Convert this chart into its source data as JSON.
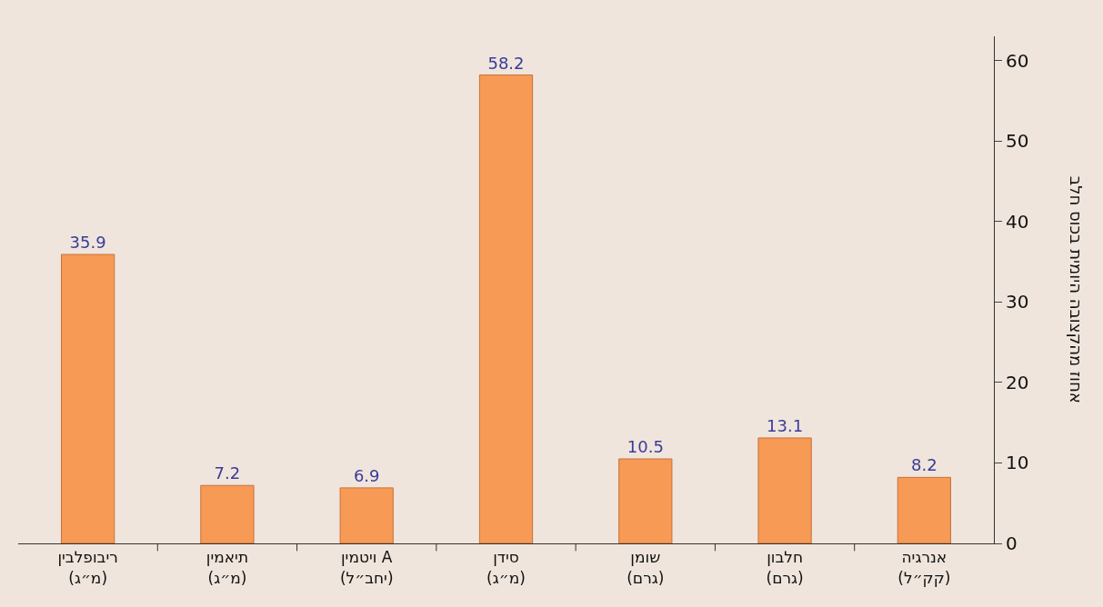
{
  "chart_data": {
    "type": "bar",
    "ylabel": "אחוז מהקצובה היומית בכוס חלב",
    "categories": [
      "ריבופלבין (מ״ג)",
      "תיאמין (מ״ג)",
      "ויטמין A (יחב״ל)",
      "סידן (מ״ג)",
      "שומן (גרם)",
      "חלבון (גרם)",
      "אנרגיה (קק״ל)"
    ],
    "values": [
      35.9,
      7.2,
      6.9,
      58.2,
      10.5,
      13.1,
      8.2
    ],
    "color": "#f79a55",
    "ylim": [
      0,
      63
    ],
    "yticks": [
      0,
      10,
      20,
      30,
      40,
      50,
      60
    ],
    "grid": false,
    "data_labels": true
  }
}
